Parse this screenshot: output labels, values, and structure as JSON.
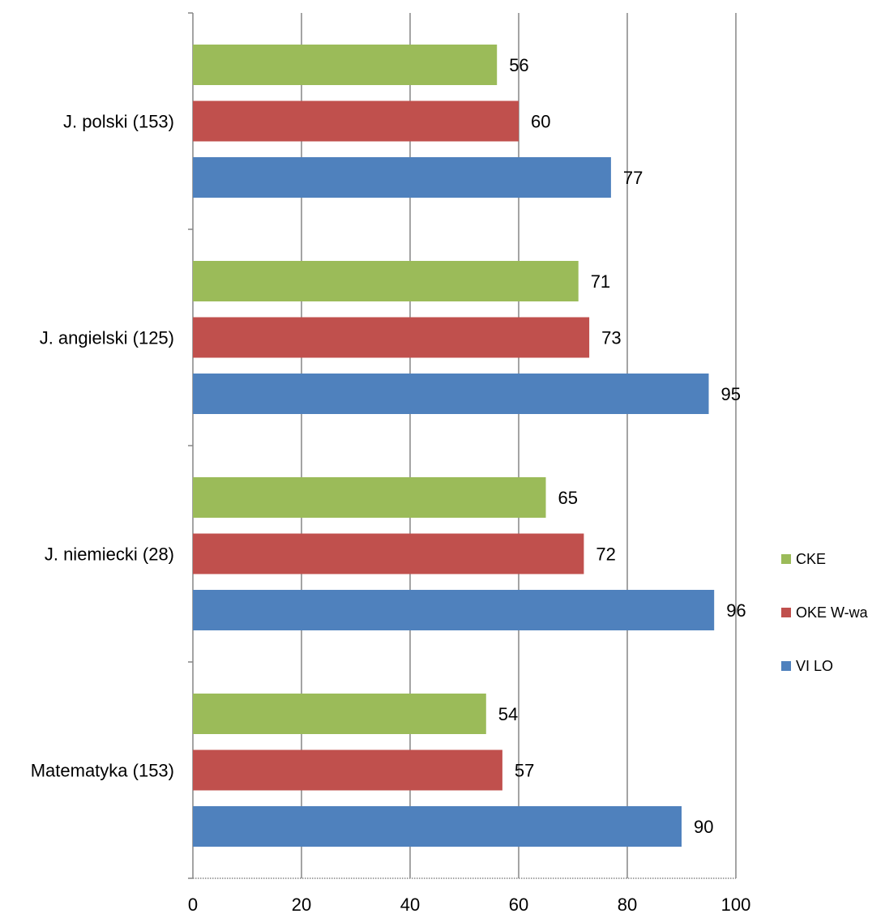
{
  "chart_data": {
    "type": "bar",
    "orientation": "horizontal",
    "title": "",
    "xlabel": "",
    "ylabel": "",
    "categories": [
      "J. polski (153)",
      "J. angielski (125)",
      "J. niemiecki (28)",
      "Matematyka (153)"
    ],
    "series": [
      {
        "name": "CKE",
        "color": "#9BBB59",
        "values": [
          56,
          71,
          65,
          54
        ]
      },
      {
        "name": "OKE W-wa",
        "color": "#C0504D",
        "values": [
          60,
          73,
          72,
          57
        ]
      },
      {
        "name": "VI LO",
        "color": "#4F81BD",
        "values": [
          77,
          95,
          96,
          90
        ]
      }
    ],
    "xlim": [
      0,
      100
    ],
    "xticks": [
      "0",
      "20",
      "40",
      "60",
      "80",
      "100"
    ],
    "grid": true,
    "legend_position": "right"
  }
}
